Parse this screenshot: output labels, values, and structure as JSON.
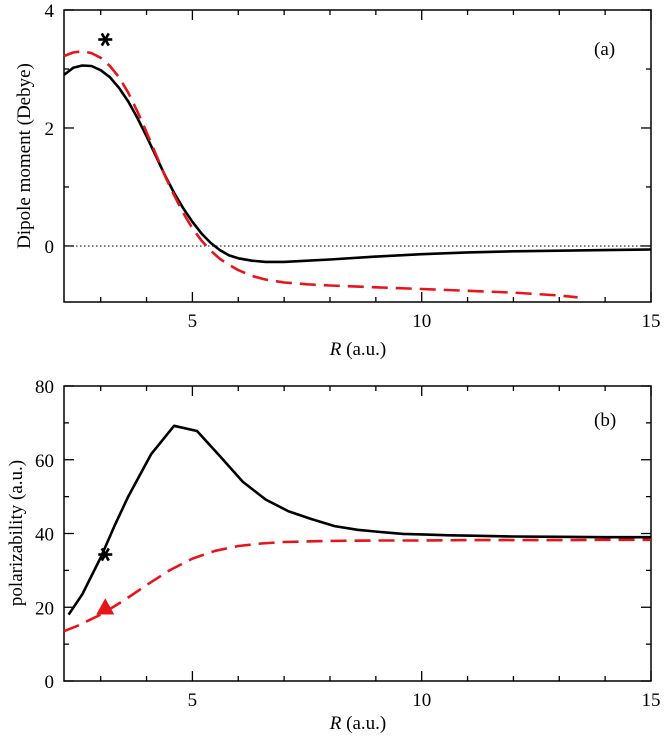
{
  "chart_data": [
    {
      "panel": "(a)",
      "type": "line",
      "ylabel": "Dipole moment (Debye)",
      "xlabel_symbol": "R",
      "xlabel_units": " (a.u.)",
      "xlim": [
        2.2,
        15
      ],
      "ylim": [
        -0.95,
        4
      ],
      "xticks": [
        5,
        10,
        15
      ],
      "yticks": [
        0,
        2,
        4
      ],
      "reference_line": {
        "y": 0,
        "style": "dotted"
      },
      "series": [
        {
          "name": "solid",
          "color": "#000000",
          "style": "solid",
          "x": [
            2.2,
            2.4,
            2.6,
            2.8,
            3.0,
            3.2,
            3.4,
            3.6,
            3.8,
            4.0,
            4.2,
            4.4,
            4.6,
            4.8,
            5.0,
            5.2,
            5.4,
            5.6,
            5.8,
            6.0,
            6.3,
            6.6,
            7.0,
            7.5,
            8.0,
            9.0,
            10.0,
            11.0,
            12.0,
            13.0,
            14.0,
            15.0
          ],
          "y": [
            2.9,
            3.02,
            3.06,
            3.05,
            2.98,
            2.86,
            2.68,
            2.45,
            2.17,
            1.86,
            1.53,
            1.2,
            0.9,
            0.64,
            0.41,
            0.21,
            0.05,
            -0.07,
            -0.16,
            -0.21,
            -0.25,
            -0.27,
            -0.27,
            -0.25,
            -0.23,
            -0.18,
            -0.14,
            -0.11,
            -0.09,
            -0.08,
            -0.07,
            -0.06
          ]
        },
        {
          "name": "dashed",
          "color": "#e8141b",
          "style": "dashed",
          "x": [
            2.2,
            2.4,
            2.6,
            2.8,
            3.0,
            3.2,
            3.4,
            3.6,
            3.8,
            4.0,
            4.2,
            4.4,
            4.6,
            4.8,
            5.0,
            5.2,
            5.4,
            5.6,
            5.8,
            6.0,
            6.3,
            6.6,
            7.0,
            7.5,
            8.0,
            9.0,
            10.0,
            11.0,
            12.0,
            13.0,
            13.4
          ],
          "y": [
            3.22,
            3.28,
            3.3,
            3.27,
            3.19,
            3.05,
            2.86,
            2.6,
            2.28,
            1.93,
            1.56,
            1.19,
            0.86,
            0.56,
            0.3,
            0.09,
            -0.08,
            -0.22,
            -0.32,
            -0.41,
            -0.51,
            -0.57,
            -0.62,
            -0.65,
            -0.67,
            -0.7,
            -0.73,
            -0.76,
            -0.79,
            -0.84,
            -0.87
          ]
        }
      ],
      "markers": [
        {
          "symbol": "asterisk",
          "x": 3.1,
          "y": 3.5,
          "color": "#000000"
        }
      ]
    },
    {
      "panel": "(b)",
      "type": "line",
      "ylabel": "polarizability (a.u.)",
      "xlabel_symbol": "R",
      "xlabel_units": " (a.u.)",
      "xlim": [
        2.2,
        15
      ],
      "ylim": [
        0,
        80
      ],
      "xticks": [
        5,
        10,
        15
      ],
      "yticks": [
        0,
        20,
        40,
        60,
        80
      ],
      "series": [
        {
          "name": "solid",
          "color": "#000000",
          "style": "solid",
          "x": [
            2.3,
            2.6,
            3.0,
            3.3,
            3.6,
            4.1,
            4.6,
            5.1,
            5.6,
            6.1,
            6.6,
            7.1,
            7.6,
            8.1,
            8.6,
            9.1,
            9.6,
            10.1,
            10.6,
            11.1,
            12.0,
            13.0,
            14.0,
            15.0
          ],
          "y": [
            18,
            23.5,
            33.5,
            42,
            50,
            61.5,
            69.2,
            67.8,
            61,
            54,
            49.2,
            46,
            43.9,
            42,
            41,
            40.4,
            39.9,
            39.7,
            39.5,
            39.4,
            39.2,
            39.1,
            39.0,
            39.0
          ]
        },
        {
          "name": "dashed",
          "color": "#e8141b",
          "style": "dashed",
          "x": [
            2.2,
            2.5,
            3.0,
            3.5,
            4.0,
            4.5,
            5.0,
            5.5,
            6.0,
            6.5,
            7.0,
            8.0,
            9.0,
            10.0,
            11.0,
            12.0,
            13.0,
            14.0,
            15.0
          ],
          "y": [
            13.5,
            15.0,
            18.0,
            21.8,
            26.0,
            30.0,
            33.2,
            35.3,
            36.6,
            37.3,
            37.7,
            38.0,
            38.1,
            38.1,
            38.2,
            38.2,
            38.2,
            38.3,
            38.3
          ]
        }
      ],
      "markers": [
        {
          "symbol": "asterisk",
          "x": 3.1,
          "y": 34.3,
          "color": "#000000"
        },
        {
          "symbol": "triangle",
          "x": 3.1,
          "y": 20,
          "color": "#e8141b"
        }
      ]
    }
  ]
}
